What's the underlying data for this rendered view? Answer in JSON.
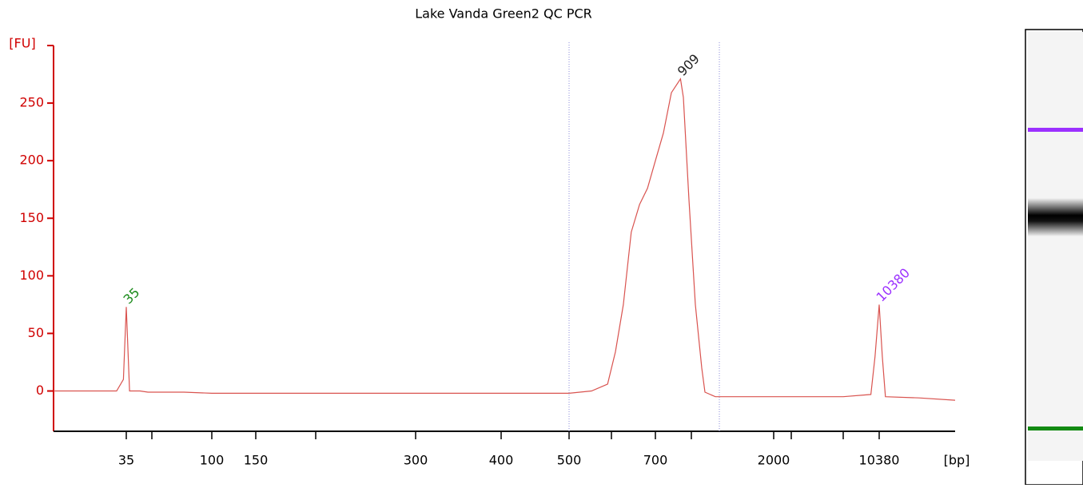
{
  "chart_data": {
    "type": "line",
    "title": "Lake Vanda Green2 QC PCR",
    "y_label": "[FU]",
    "x_label": "[bp]",
    "x": [
      20,
      33,
      34.4,
      35,
      36.9,
      43,
      47.7,
      76.7,
      100,
      204,
      375,
      500,
      553,
      591,
      609,
      627,
      645,
      664,
      682,
      700,
      767,
      833,
      909,
      933,
      980,
      1049,
      1126,
      1165,
      1291,
      2000,
      7000,
      9600,
      9990,
      10380,
      10570,
      10760,
      12800,
      15000
    ],
    "series": [
      {
        "color": "#d9534f",
        "values": [
          0,
          0,
          10,
          73,
          0,
          0,
          -1,
          -1,
          -2,
          -2,
          -2,
          -2,
          0,
          6,
          34,
          75,
          138,
          162,
          176,
          200,
          224,
          259,
          271,
          255,
          166,
          75,
          20,
          -1,
          -5,
          -5,
          -5,
          -3,
          30,
          75,
          30,
          -5,
          -6,
          -8
        ]
      }
    ],
    "xlim": [
      20,
      15000
    ],
    "xticks": [
      35,
      {
        "value": 50,
        "label": null
      },
      100,
      150,
      {
        "value": 200,
        "label": null
      },
      300,
      400,
      500,
      {
        "value": 600,
        "label": null
      },
      700,
      {
        "value": 1000,
        "label": null
      },
      2000,
      {
        "value": 3000,
        "label": null
      },
      {
        "value": 7000,
        "label": null
      },
      10380
    ],
    "ylim": [
      -35,
      300
    ],
    "yticks": [
      0,
      50,
      100,
      150,
      200,
      250
    ],
    "axis_color": "#d00000",
    "region_lines": [
      500,
      1340
    ],
    "annotations": [
      {
        "text": "35",
        "x": 35,
        "y": 73,
        "color": "#1a8a1a"
      },
      {
        "text": "909",
        "x": 909,
        "y": 271,
        "color": "#222222"
      },
      {
        "text": "10380",
        "x": 10380,
        "y": 75,
        "color": "#9b30ff"
      }
    ]
  }
}
